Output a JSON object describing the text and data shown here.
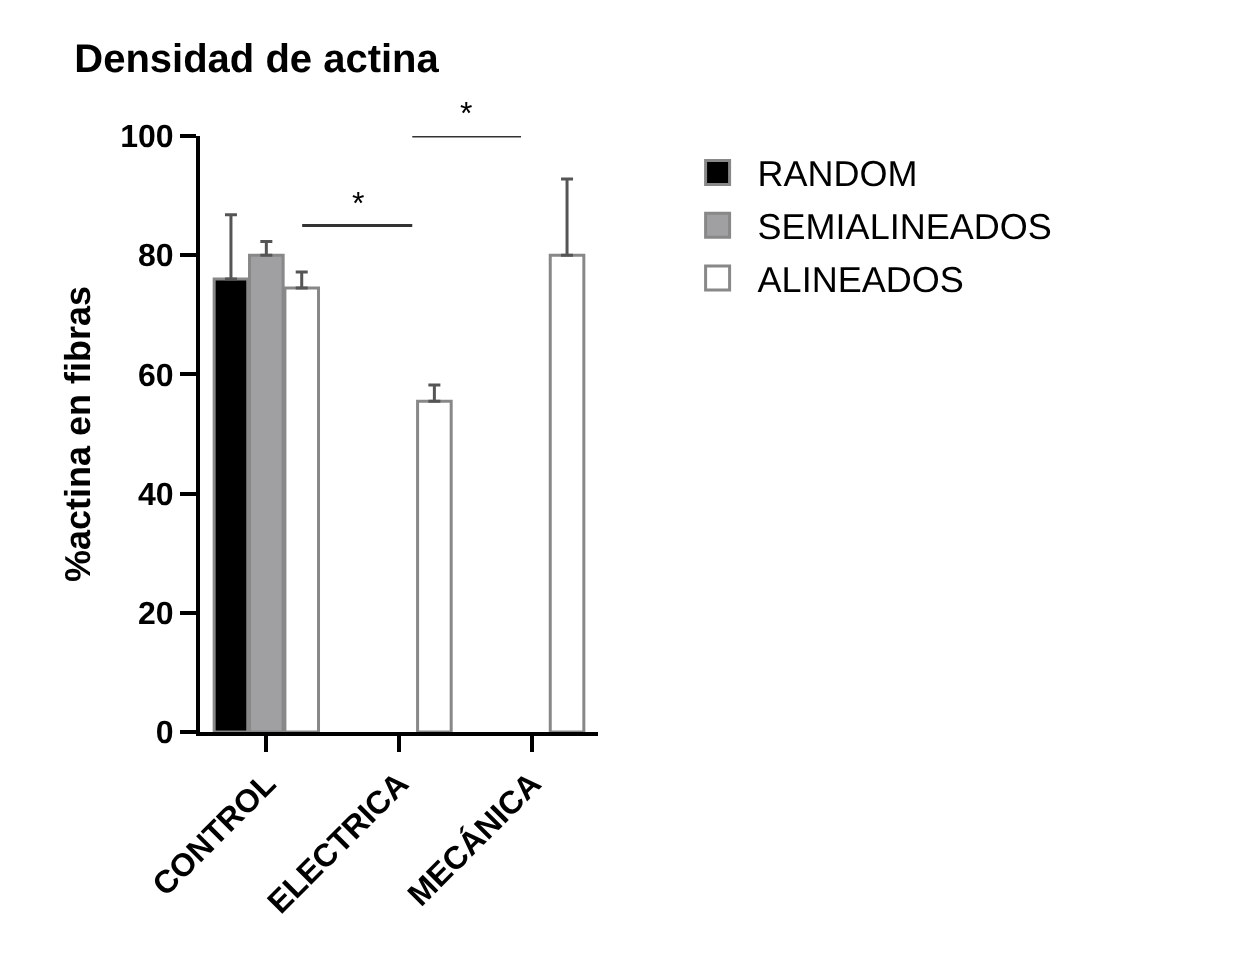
{
  "chart_data": {
    "type": "bar",
    "title": "Densidad de actina",
    "ylabel": "%actina en fibras",
    "categories": [
      "CONTROL",
      "ELECTRICA",
      "MECÁNICA"
    ],
    "series": [
      {
        "name": "RANDOM",
        "color": "#000000",
        "values": [
          76,
          null,
          null
        ],
        "errors": [
          [
            76,
            86.8
          ],
          null,
          null
        ]
      },
      {
        "name": "SEMIALINEADOS",
        "color": "#a0a0a3",
        "values": [
          80,
          null,
          null
        ],
        "errors": [
          [
            80,
            82.3
          ],
          null,
          null
        ]
      },
      {
        "name": "ALINEADOS",
        "color": "#ffffff",
        "values": [
          74.5,
          55.5,
          80
        ],
        "errors": [
          [
            74.5,
            77.2
          ],
          [
            55.5,
            58.2
          ],
          [
            80,
            92.8
          ]
        ]
      }
    ],
    "ylim": [
      0,
      100
    ],
    "yticks": [
      0,
      20,
      40,
      60,
      80,
      100
    ],
    "grid": false,
    "legend": "right",
    "annotations": [
      "*",
      "*"
    ]
  }
}
